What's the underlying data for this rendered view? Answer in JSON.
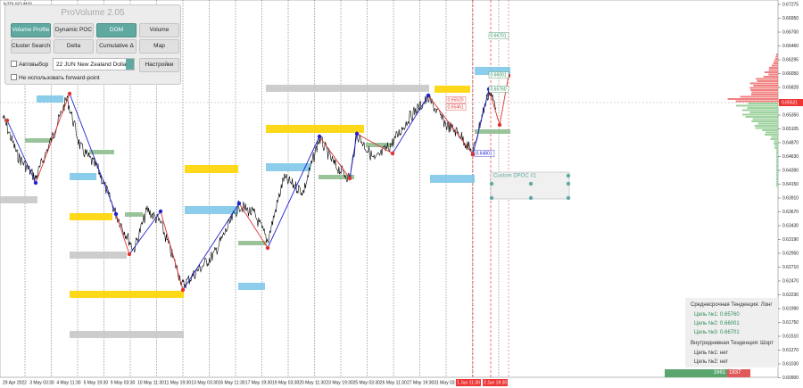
{
  "symbol": "NZDUSD,M30",
  "panel": {
    "title": "ProVolume 2.05",
    "buttons": [
      "Volume Profile",
      "Dynamic POC",
      "DOM",
      "Volume",
      "Cluster Search",
      "Delta",
      "Cumulative Δ",
      "Map"
    ],
    "auto_select": "Автовыбор",
    "instrument": "22 JUN New Zealand Dollar",
    "settings": "Настройки",
    "forward_point": "Не использовать forward-point"
  },
  "price_axis": [
    "0.67275",
    "0.66950",
    "0.66700",
    "0.66460",
    "0.66295",
    "0.66050",
    "0.65828",
    "0.65575",
    "0.65350",
    "0.65105",
    "0.64870",
    "0.64630",
    "0.64390",
    "0.64150",
    "0.63910",
    "0.63670",
    "0.63430",
    "0.63190",
    "0.62950",
    "0.62710",
    "0.62470",
    "0.62230",
    "0.61990",
    "0.61750",
    "0.61510",
    "0.61270",
    "0.61030",
    "0.60900"
  ],
  "current_price": "0.65521",
  "time_axis": [
    "29 Apr 2022",
    "3 May 03:30",
    "4 May 11:30",
    "5 May 19:30",
    "9 May 03:30",
    "10 May 11:30",
    "11 May 19:30",
    "13 May 03:30",
    "16 May 11:30",
    "17 May 19:30",
    "19 May 03:30",
    "20 May 11:30",
    "23 May 19:30",
    "25 May 03:30",
    "26 May 11:30",
    "27 May 19:30",
    "31 May 03:30"
  ],
  "time_axis_marked": [
    "1 Jun 11:30",
    "2 Jun 19:30"
  ],
  "level_labels": [
    "0.66701",
    "0.66001",
    "0.65760",
    "0.64801",
    "0.65520",
    "0.65461"
  ],
  "dpoc_label": "Custom DPOC #1",
  "info": {
    "mid_trend": "Среднесрочная Тенденция: Лонг",
    "mid_targets": [
      "Цель №1: 0.65760",
      "Цель №2: 0.66001",
      "Цель №3: 0.66701"
    ],
    "intraday_trend": "Внутридневная Тенденция: Шорт",
    "intraday_targets": [
      "Цель №1: нет",
      "Цель №2: нет"
    ]
  },
  "volume_bar": {
    "buy": "1661",
    "sell": "1837"
  }
}
